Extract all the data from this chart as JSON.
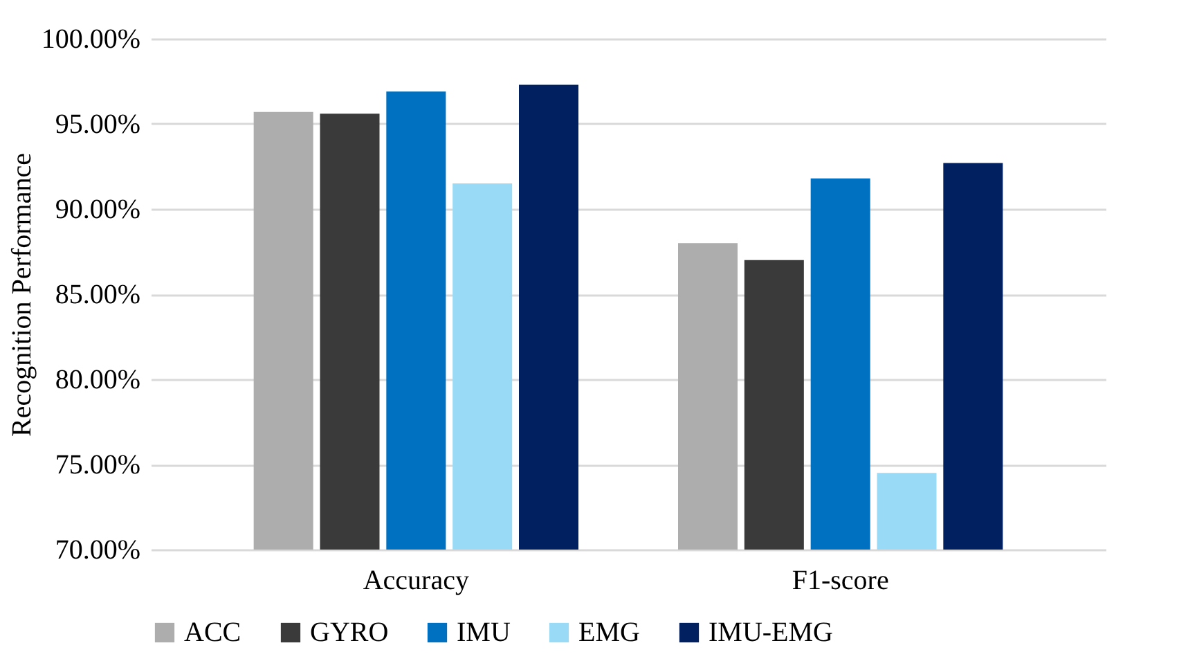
{
  "chart_data": {
    "type": "bar",
    "ylabel": "Recognition Performance",
    "categories": [
      "Accuracy",
      "F1-score"
    ],
    "series": [
      {
        "name": "ACC",
        "color": "#adadad",
        "values": [
          95.7,
          88.0
        ]
      },
      {
        "name": "GYRO",
        "color": "#3a3a3a",
        "values": [
          95.6,
          87.0
        ]
      },
      {
        "name": "IMU",
        "color": "#0070c0",
        "values": [
          96.9,
          91.8
        ]
      },
      {
        "name": "EMG",
        "color": "#99dbf7",
        "values": [
          91.5,
          74.5
        ]
      },
      {
        "name": "IMU-EMG",
        "color": "#002060",
        "values": [
          97.3,
          92.7
        ]
      }
    ],
    "ylim": [
      70,
      100
    ],
    "yticks": [
      {
        "value": 70,
        "label": "70.00%"
      },
      {
        "value": 75,
        "label": "75.00%"
      },
      {
        "value": 80,
        "label": "80.00%"
      },
      {
        "value": 85,
        "label": "85.00%"
      },
      {
        "value": 90,
        "label": "90.00%"
      },
      {
        "value": 95,
        "label": "95.00%"
      },
      {
        "value": 100,
        "label": "100.00%"
      }
    ],
    "grid": "y",
    "legend": "bottom"
  }
}
